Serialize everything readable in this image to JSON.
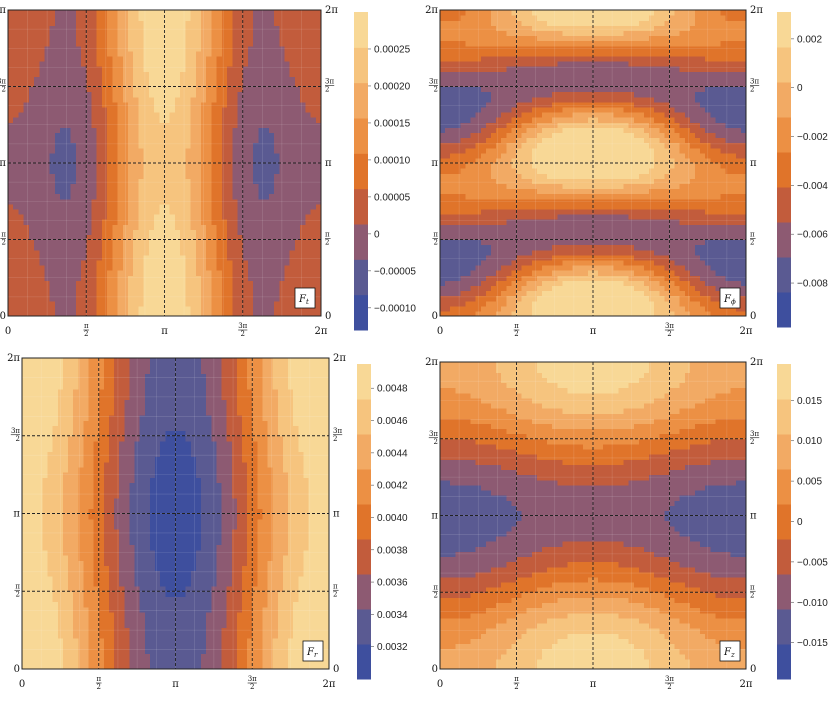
{
  "palette": [
    "#3e4f9e",
    "#5a5a92",
    "#8d5a72",
    "#c25c3c",
    "#e0742a",
    "#ec9044",
    "#f2aa64",
    "#f6c47e",
    "#f8d896"
  ],
  "chart_data": [
    {
      "type": "heatmap",
      "panel_label": "F",
      "panel_sub": "t",
      "xlim": [
        0,
        6.2832
      ],
      "ylim": [
        0,
        6.2832
      ],
      "x_ticks": [
        "0",
        "π/2",
        "π",
        "3π/2",
        "2π"
      ],
      "y_ticks": [
        "0",
        "π/2",
        "π",
        "3π/2",
        "2π"
      ],
      "colorbar": {
        "range": [
          -0.00013,
          0.0003
        ],
        "labels": [
          "0.00025",
          "0.00020",
          "0.00015",
          "0.00010",
          "0.00005",
          "0",
          "−0.00005",
          "−0.00010"
        ],
        "label_values": [
          0.00025,
          0.0002,
          0.00015,
          0.0001,
          5e-05,
          0,
          -5e-05,
          -0.0001
        ]
      },
      "field": {
        "base": 8e-05,
        "ax": 0.00012,
        "bx": 7e-05,
        "cy": 2.5e-05,
        "ay": 0,
        "rx": 1,
        "ry": 1
      }
    },
    {
      "type": "heatmap",
      "panel_label": "F",
      "panel_sub": "ϕ",
      "xlim": [
        0,
        6.2832
      ],
      "ylim": [
        0,
        6.2832
      ],
      "x_ticks": [
        "0",
        "π/2",
        "π",
        "3π/2",
        "2π"
      ],
      "y_ticks": [
        "0",
        "π/2",
        "π",
        "3π/2",
        "2π"
      ],
      "colorbar": {
        "range": [
          -0.0098,
          0.0031
        ],
        "labels": [
          "0.002",
          "0",
          "−0.002",
          "−0.004",
          "−0.006",
          "−0.008"
        ],
        "label_values": [
          0.002,
          0,
          -0.002,
          -0.004,
          -0.006,
          -0.008
        ]
      },
      "field": {
        "base": -0.003,
        "ax": 0.0022,
        "bx": 0,
        "cy": 0.0035,
        "ay": 0.0028,
        "rx": 1,
        "ry": 2
      }
    },
    {
      "type": "heatmap",
      "panel_label": "F",
      "panel_sub": "r",
      "xlim": [
        0,
        6.2832
      ],
      "ylim": [
        0,
        6.2832
      ],
      "x_ticks": [
        "0",
        "π/2",
        "π",
        "3π/2",
        "2π"
      ],
      "y_ticks": [
        "0",
        "π/2",
        "π",
        "3π/2",
        "2π"
      ],
      "colorbar": {
        "range": [
          0.003,
          0.00495
        ],
        "labels": [
          "0.0048",
          "0.0046",
          "0.0044",
          "0.0042",
          "0.0040",
          "0.0038",
          "0.0036",
          "0.0034",
          "0.0032"
        ],
        "label_values": [
          0.0048,
          0.0046,
          0.0044,
          0.0042,
          0.004,
          0.0038,
          0.0036,
          0.0034,
          0.0032
        ]
      },
      "field": {
        "base": 0.00405,
        "ax": -0.00085,
        "bx": 0,
        "cy": 0.0001,
        "ay": 0,
        "rx": 1,
        "ry": 1
      }
    },
    {
      "type": "heatmap",
      "panel_label": "F",
      "panel_sub": "z",
      "xlim": [
        0,
        6.2832
      ],
      "ylim": [
        0,
        6.2832
      ],
      "x_ticks": [
        "0",
        "π/2",
        "π",
        "3π/2",
        "2π"
      ],
      "y_ticks": [
        "0",
        "π/2",
        "π",
        "3π/2",
        "2π"
      ],
      "colorbar": {
        "range": [
          -0.0195,
          0.0195
        ],
        "labels": [
          "0.015",
          "0.010",
          "0.005",
          "0",
          "−0.005",
          "−0.010",
          "−0.015"
        ],
        "label_values": [
          0.015,
          0.01,
          0.005,
          0,
          -0.005,
          -0.01,
          -0.015
        ]
      },
      "field": {
        "base": 0.001,
        "ax": 0.004,
        "bx": 0,
        "cy": 0.012,
        "ay": 0.0015,
        "rx": 1,
        "ry": 1
      }
    }
  ]
}
